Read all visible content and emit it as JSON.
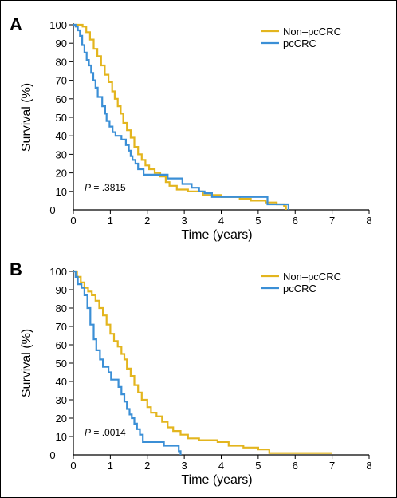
{
  "chart_data": [
    {
      "type": "line",
      "panel_label": "A",
      "xlabel": "Time (years)",
      "ylabel": "Survival (%)",
      "xlim": [
        0,
        8
      ],
      "ylim": [
        0,
        100
      ],
      "x_ticks": [
        "0",
        "1",
        "2",
        "3",
        "4",
        "5",
        "6",
        "7",
        "8"
      ],
      "y_ticks": [
        "10",
        "20",
        "30",
        "40",
        "50",
        "60",
        "70",
        "80",
        "90",
        "100"
      ],
      "annotation": {
        "prefix": "P",
        "value": " = .3815"
      },
      "legend": "top-right",
      "grid": false,
      "series": [
        {
          "name": "Non–pcCRC",
          "color": "#e3b51e",
          "points": [
            [
              0,
              100
            ],
            [
              0.15,
              100
            ],
            [
              0.25,
              99
            ],
            [
              0.35,
              96
            ],
            [
              0.45,
              92
            ],
            [
              0.55,
              87
            ],
            [
              0.65,
              83
            ],
            [
              0.75,
              78
            ],
            [
              0.85,
              73
            ],
            [
              0.95,
              69
            ],
            [
              1.05,
              64
            ],
            [
              1.12,
              60
            ],
            [
              1.2,
              56
            ],
            [
              1.28,
              52
            ],
            [
              1.35,
              47
            ],
            [
              1.45,
              43
            ],
            [
              1.55,
              39
            ],
            [
              1.65,
              34
            ],
            [
              1.75,
              30
            ],
            [
              1.85,
              27
            ],
            [
              1.95,
              24
            ],
            [
              2.05,
              22
            ],
            [
              2.2,
              20
            ],
            [
              2.35,
              18
            ],
            [
              2.5,
              15
            ],
            [
              2.6,
              13
            ],
            [
              2.8,
              11
            ],
            [
              3.1,
              10
            ],
            [
              3.5,
              8
            ],
            [
              4.0,
              7
            ],
            [
              4.5,
              6
            ],
            [
              4.8,
              5
            ],
            [
              5.2,
              4
            ],
            [
              5.5,
              3
            ],
            [
              5.7,
              2
            ],
            [
              5.75,
              0
            ]
          ]
        },
        {
          "name": "pcCRC",
          "color": "#3b8fd6",
          "points": [
            [
              0,
              100
            ],
            [
              0.06,
              99
            ],
            [
              0.12,
              97
            ],
            [
              0.18,
              94
            ],
            [
              0.24,
              89
            ],
            [
              0.3,
              85
            ],
            [
              0.36,
              81
            ],
            [
              0.42,
              78
            ],
            [
              0.48,
              74
            ],
            [
              0.54,
              70
            ],
            [
              0.6,
              66
            ],
            [
              0.66,
              61
            ],
            [
              0.78,
              56
            ],
            [
              0.86,
              52
            ],
            [
              0.9,
              48
            ],
            [
              0.98,
              45
            ],
            [
              1.06,
              42
            ],
            [
              1.14,
              40
            ],
            [
              1.3,
              38
            ],
            [
              1.42,
              35
            ],
            [
              1.5,
              32
            ],
            [
              1.55,
              29
            ],
            [
              1.6,
              27
            ],
            [
              1.68,
              25
            ],
            [
              1.75,
              22
            ],
            [
              1.9,
              19
            ],
            [
              2.3,
              19
            ],
            [
              2.55,
              17
            ],
            [
              2.95,
              14
            ],
            [
              3.2,
              12
            ],
            [
              3.4,
              10
            ],
            [
              3.55,
              9
            ],
            [
              3.75,
              7
            ],
            [
              5.15,
              7
            ],
            [
              5.25,
              3
            ],
            [
              5.8,
              3
            ],
            [
              5.82,
              0
            ]
          ]
        }
      ]
    },
    {
      "type": "line",
      "panel_label": "B",
      "xlabel": "Time (years)",
      "ylabel": "Survival (%)",
      "xlim": [
        0,
        8
      ],
      "ylim": [
        0,
        100
      ],
      "x_ticks": [
        "0",
        "1",
        "2",
        "3",
        "4",
        "5",
        "6",
        "7",
        "8"
      ],
      "y_ticks": [
        "10",
        "20",
        "30",
        "40",
        "50",
        "60",
        "70",
        "80",
        "90",
        "100"
      ],
      "annotation": {
        "prefix": "P",
        "value": " = .0014"
      },
      "legend": "top-right",
      "grid": false,
      "series": [
        {
          "name": "Non–pcCRC",
          "color": "#e3b51e",
          "points": [
            [
              0,
              100
            ],
            [
              0.1,
              97
            ],
            [
              0.2,
              94
            ],
            [
              0.3,
              91
            ],
            [
              0.4,
              89
            ],
            [
              0.5,
              87
            ],
            [
              0.6,
              84
            ],
            [
              0.7,
              80
            ],
            [
              0.8,
              76
            ],
            [
              0.9,
              71
            ],
            [
              1.0,
              66
            ],
            [
              1.1,
              62
            ],
            [
              1.2,
              59
            ],
            [
              1.3,
              55
            ],
            [
              1.38,
              52
            ],
            [
              1.45,
              47
            ],
            [
              1.55,
              43
            ],
            [
              1.65,
              38
            ],
            [
              1.75,
              34
            ],
            [
              1.85,
              30
            ],
            [
              2.0,
              26
            ],
            [
              2.1,
              23
            ],
            [
              2.25,
              21
            ],
            [
              2.4,
              18
            ],
            [
              2.55,
              15
            ],
            [
              2.7,
              13
            ],
            [
              2.9,
              11
            ],
            [
              3.1,
              9
            ],
            [
              3.4,
              8
            ],
            [
              3.9,
              7
            ],
            [
              4.2,
              5
            ],
            [
              4.6,
              4
            ],
            [
              5.0,
              3
            ],
            [
              5.3,
              1
            ],
            [
              6.0,
              1
            ],
            [
              7.0,
              1
            ]
          ]
        },
        {
          "name": "pcCRC",
          "color": "#3b8fd6",
          "points": [
            [
              0,
              100
            ],
            [
              0.06,
              97
            ],
            [
              0.12,
              93
            ],
            [
              0.22,
              91
            ],
            [
              0.3,
              87
            ],
            [
              0.38,
              80
            ],
            [
              0.46,
              71
            ],
            [
              0.55,
              63
            ],
            [
              0.62,
              57
            ],
            [
              0.72,
              52
            ],
            [
              0.8,
              48
            ],
            [
              0.95,
              45
            ],
            [
              1.02,
              41
            ],
            [
              1.18,
              41
            ],
            [
              1.22,
              37
            ],
            [
              1.3,
              33
            ],
            [
              1.38,
              29
            ],
            [
              1.45,
              25
            ],
            [
              1.52,
              22
            ],
            [
              1.58,
              20
            ],
            [
              1.65,
              17
            ],
            [
              1.72,
              14
            ],
            [
              1.8,
              11
            ],
            [
              1.88,
              7
            ],
            [
              2.35,
              7
            ],
            [
              2.45,
              5
            ],
            [
              2.75,
              5
            ],
            [
              2.85,
              2
            ],
            [
              2.9,
              0
            ]
          ]
        }
      ]
    }
  ]
}
